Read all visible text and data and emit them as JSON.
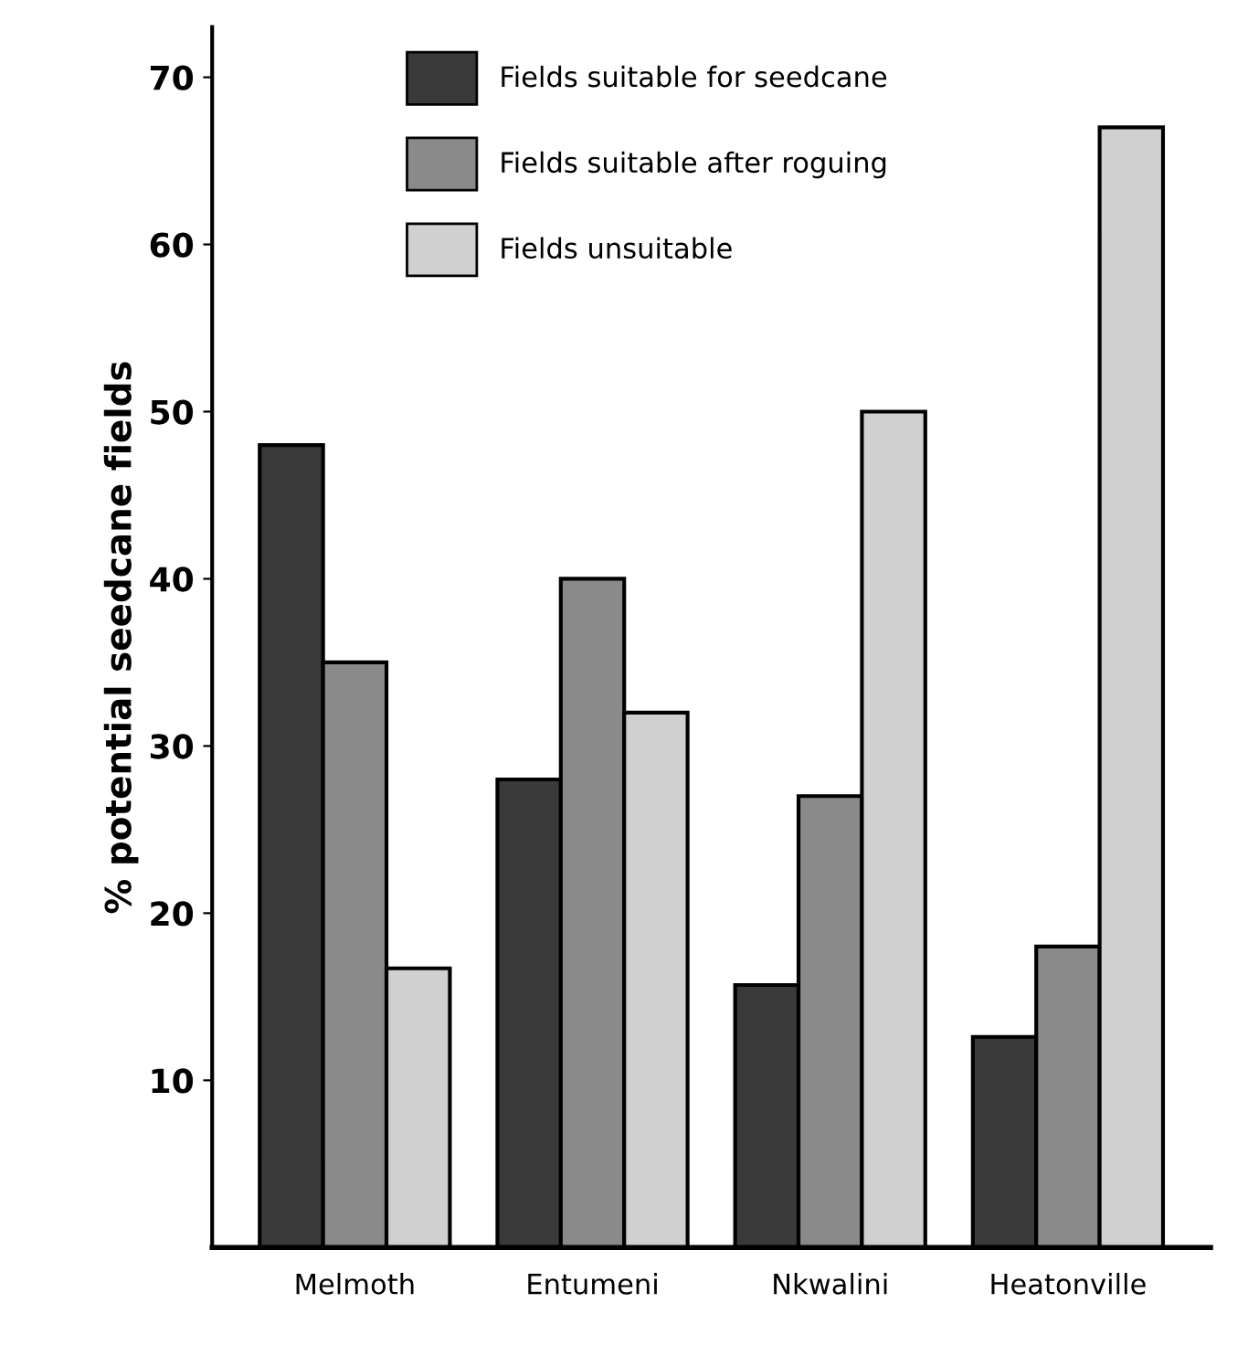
{
  "chart_data": {
    "type": "bar",
    "ylabel": "% potential seedcane fields",
    "categories": [
      "Melmoth",
      "Entumeni",
      "Nkwalini",
      "Heatonville"
    ],
    "series": [
      {
        "name": "Fields suitable for seedcane",
        "color": "#3a3a3a",
        "values": [
          48,
          28,
          15.7,
          12.6
        ]
      },
      {
        "name": "Fields suitable after roguing",
        "color": "#8a8a8a",
        "values": [
          35,
          40,
          27,
          18
        ]
      },
      {
        "name": "Fields unsuitable",
        "color": "#d0d0d0",
        "values": [
          16.7,
          32,
          50,
          67
        ]
      }
    ],
    "ylim": [
      0,
      73
    ],
    "yticks": [
      10,
      20,
      30,
      40,
      50,
      60,
      70
    ],
    "grid": false,
    "legend": "top left"
  }
}
